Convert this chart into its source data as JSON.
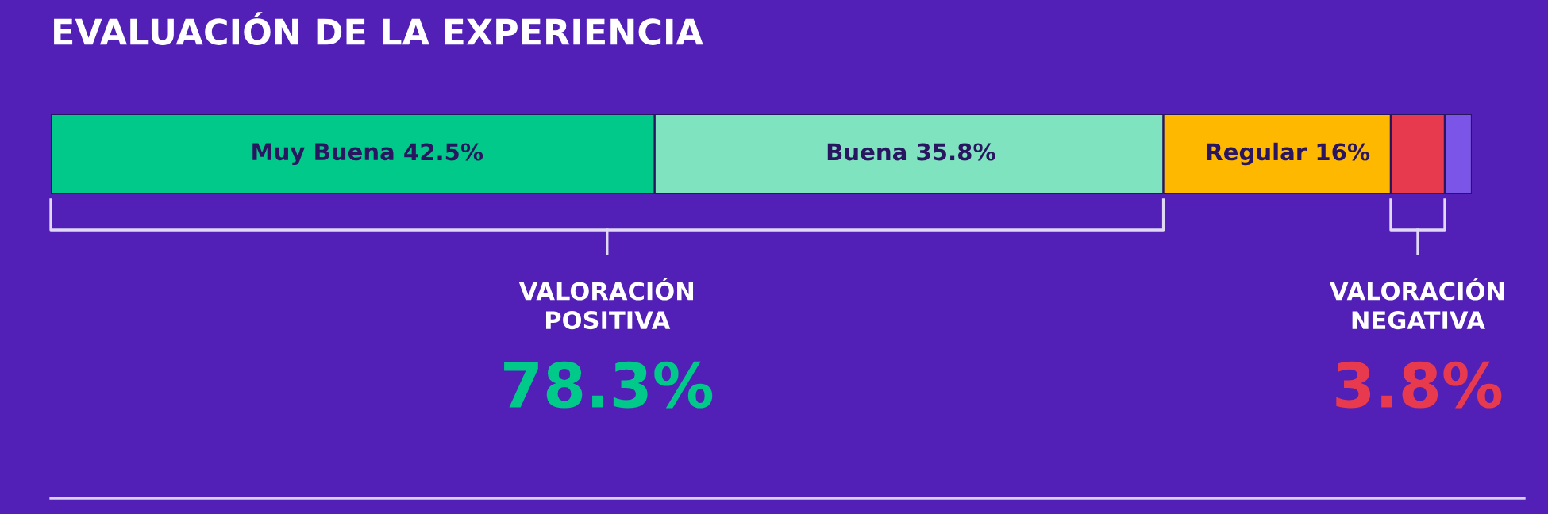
{
  "chart_data": {
    "type": "bar",
    "orientation": "horizontal",
    "stacked": true,
    "title": "EVALUACIÓN DE LA EXPERIENCIA",
    "categories": [
      null
    ],
    "series": [
      {
        "name": "Muy Buena",
        "color": "#00c98a",
        "values": [
          42.5
        ],
        "value_labels": [
          "42.5%"
        ]
      },
      {
        "name": "Buena",
        "color": "#7fe3c0",
        "values": [
          35.8
        ],
        "value_labels": [
          "35.8%"
        ]
      },
      {
        "name": "Regular",
        "color": "#ffb800",
        "values": [
          16
        ],
        "value_labels": [
          "16%"
        ]
      },
      {
        "color": "#e83a4f",
        "values": [
          3.8
        ]
      },
      {
        "color": "#7b55e8",
        "values": [
          1.9
        ]
      }
    ],
    "annotations": [
      "VALORACIÓN\nPOSITIVA",
      "78.3%",
      "VALORACIÓN\nNEGATIVA",
      "3.8%"
    ],
    "grid": false,
    "legend": false,
    "tick_labels": false
  }
}
